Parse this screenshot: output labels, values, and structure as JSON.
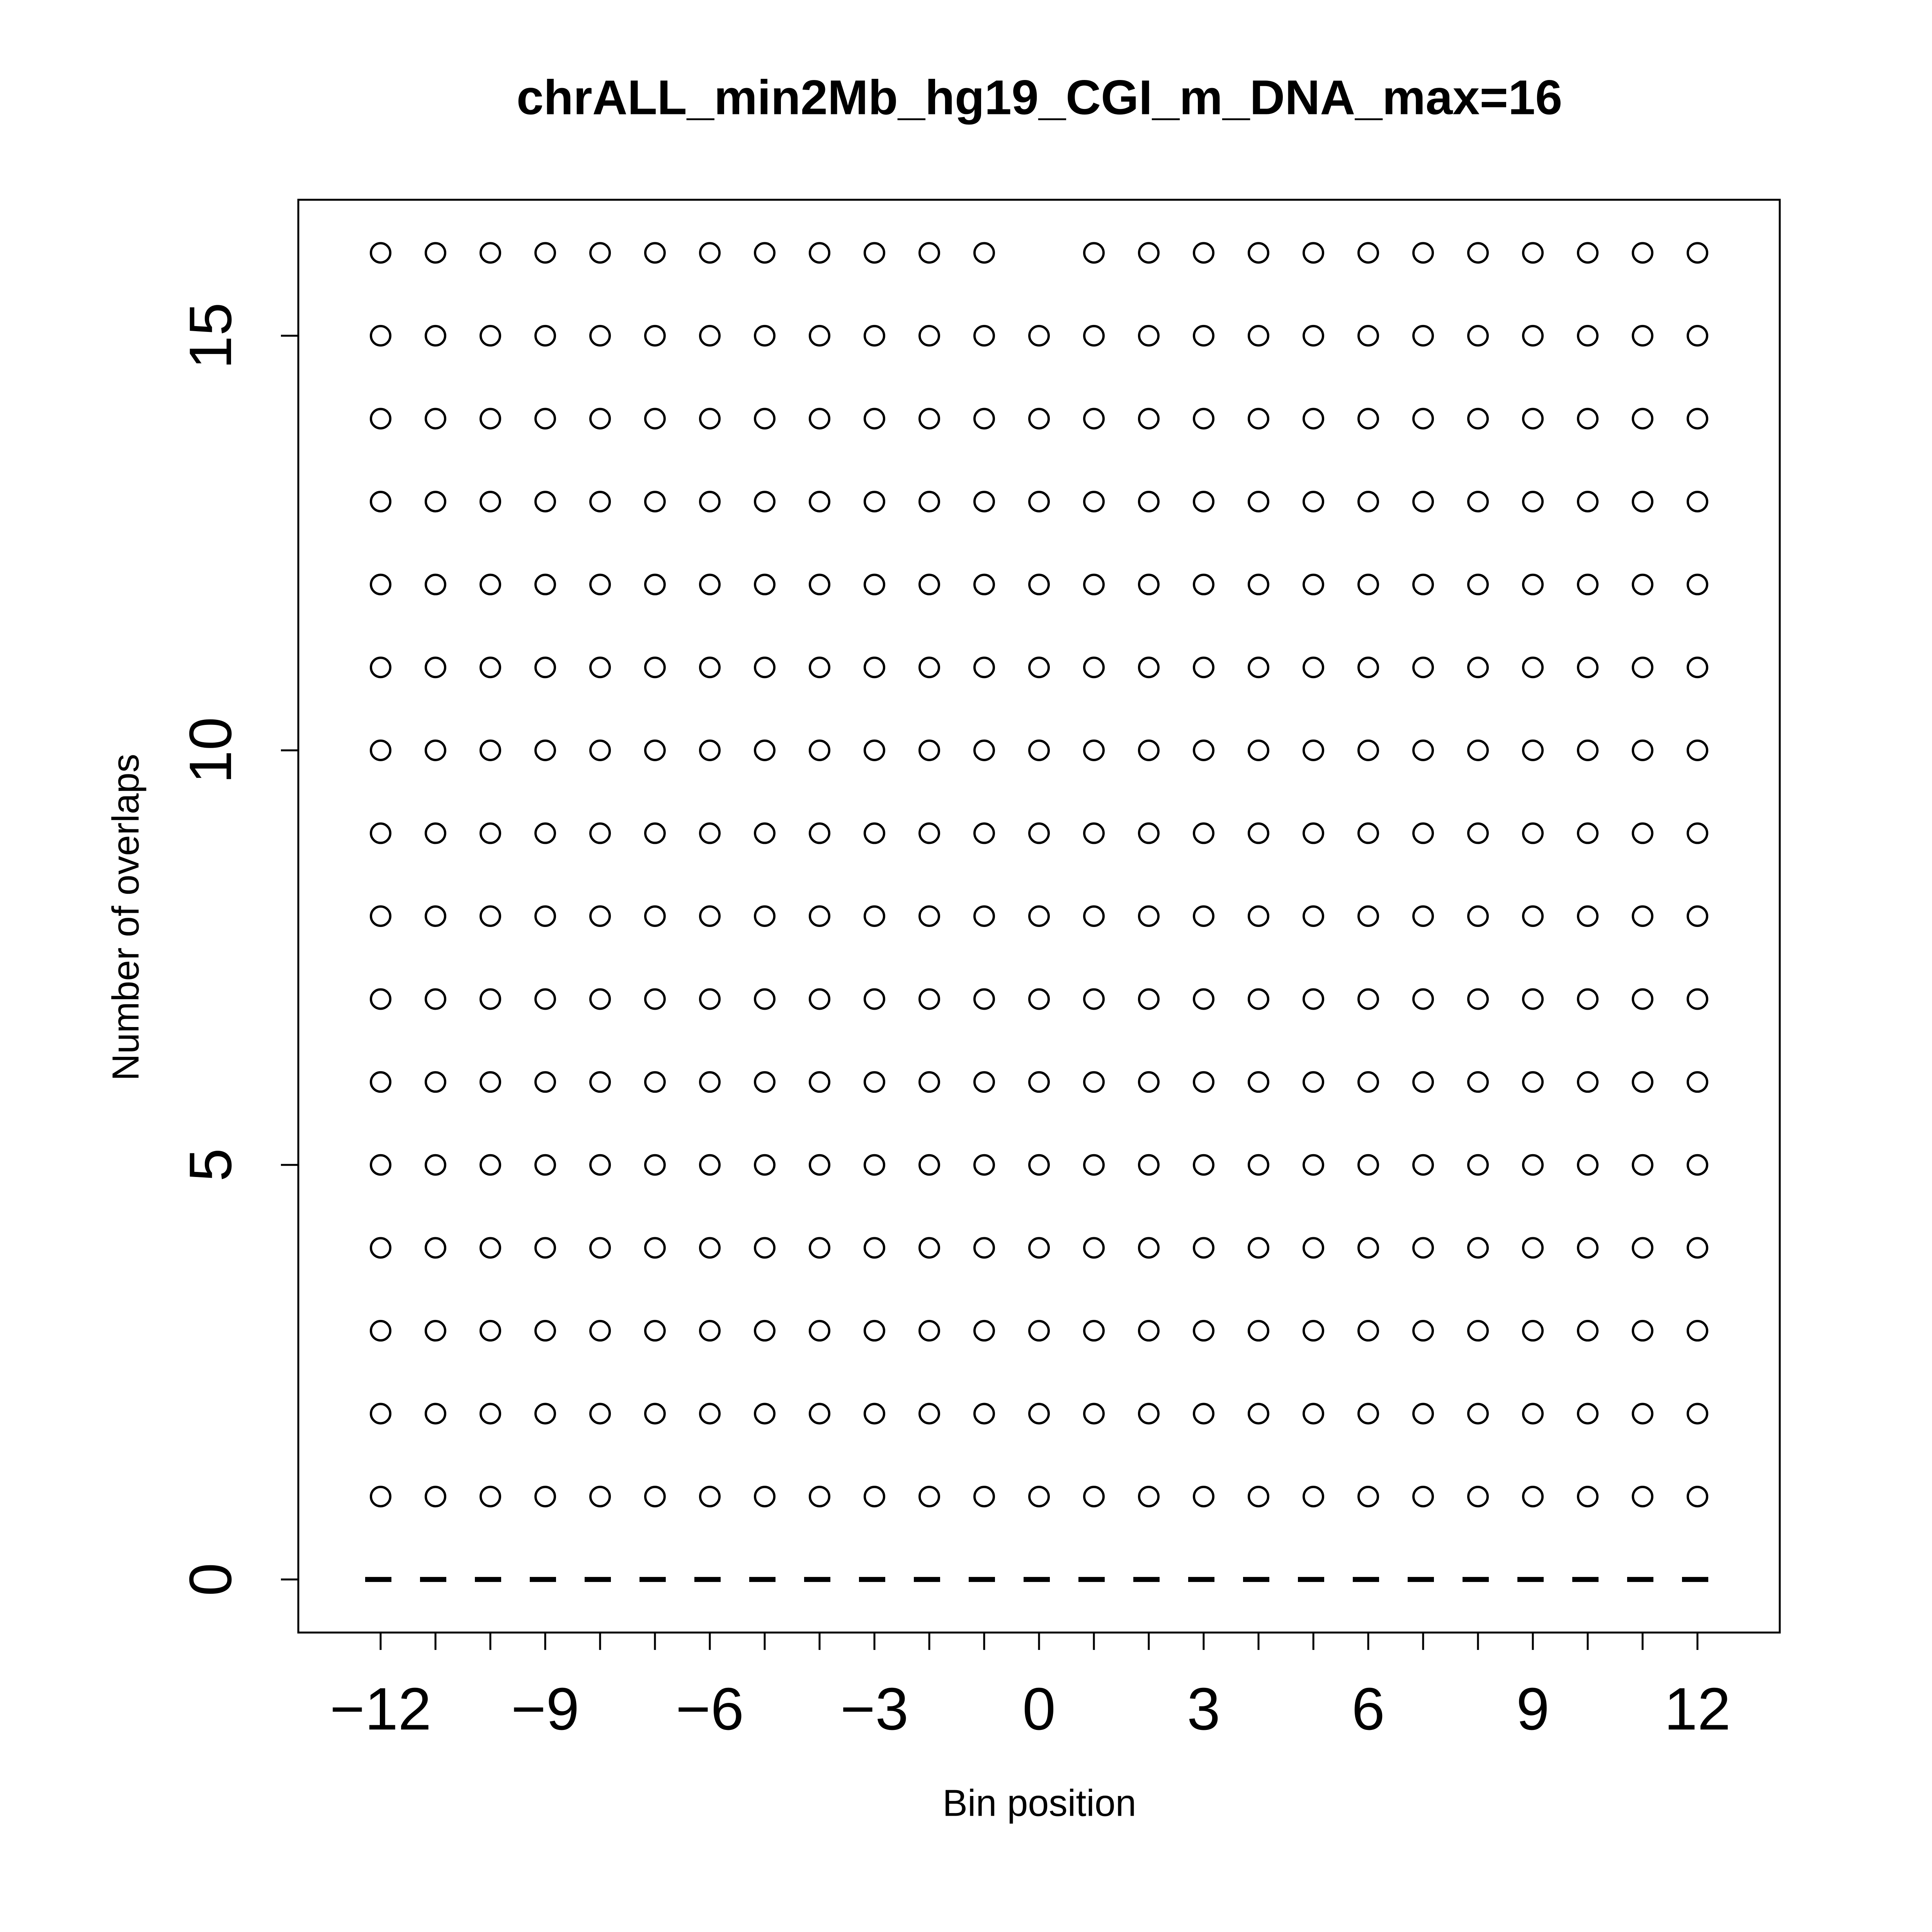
{
  "chart_data": {
    "type": "scatter",
    "title": "chrALL_min2Mb_hg19_CGI_m_DNA_max=16",
    "xlabel": "Bin position",
    "ylabel": "Number of overlaps",
    "x": [
      -12,
      -11,
      -10,
      -9,
      -8,
      -7,
      -6,
      -5,
      -4,
      -3,
      -2,
      -1,
      0,
      1,
      2,
      3,
      4,
      5,
      6,
      7,
      8,
      9,
      10,
      11,
      12
    ],
    "values": [
      [
        1,
        2,
        3,
        4,
        5,
        6,
        7,
        8,
        9,
        10,
        11,
        12,
        13,
        14,
        15,
        16
      ],
      [
        1,
        2,
        3,
        4,
        5,
        6,
        7,
        8,
        9,
        10,
        11,
        12,
        13,
        14,
        15,
        16
      ],
      [
        1,
        2,
        3,
        4,
        5,
        6,
        7,
        8,
        9,
        10,
        11,
        12,
        13,
        14,
        15,
        16
      ],
      [
        1,
        2,
        3,
        4,
        5,
        6,
        7,
        8,
        9,
        10,
        11,
        12,
        13,
        14,
        15,
        16
      ],
      [
        1,
        2,
        3,
        4,
        5,
        6,
        7,
        8,
        9,
        10,
        11,
        12,
        13,
        14,
        15,
        16
      ],
      [
        1,
        2,
        3,
        4,
        5,
        6,
        7,
        8,
        9,
        10,
        11,
        12,
        13,
        14,
        15,
        16
      ],
      [
        1,
        2,
        3,
        4,
        5,
        6,
        7,
        8,
        9,
        10,
        11,
        12,
        13,
        14,
        15,
        16
      ],
      [
        1,
        2,
        3,
        4,
        5,
        6,
        7,
        8,
        9,
        10,
        11,
        12,
        13,
        14,
        15,
        16
      ],
      [
        1,
        2,
        3,
        4,
        5,
        6,
        7,
        8,
        9,
        10,
        11,
        12,
        13,
        14,
        15,
        16
      ],
      [
        1,
        2,
        3,
        4,
        5,
        6,
        7,
        8,
        9,
        10,
        11,
        12,
        13,
        14,
        15,
        16
      ],
      [
        1,
        2,
        3,
        4,
        5,
        6,
        7,
        8,
        9,
        10,
        11,
        12,
        13,
        14,
        15,
        16
      ],
      [
        1,
        2,
        3,
        4,
        5,
        6,
        7,
        8,
        9,
        10,
        11,
        12,
        13,
        14,
        15,
        16
      ],
      [
        1,
        2,
        3,
        4,
        5,
        6,
        7,
        8,
        9,
        10,
        11,
        12,
        13,
        14,
        15
      ],
      [
        1,
        2,
        3,
        4,
        5,
        6,
        7,
        8,
        9,
        10,
        11,
        12,
        13,
        14,
        15,
        16
      ],
      [
        1,
        2,
        3,
        4,
        5,
        6,
        7,
        8,
        9,
        10,
        11,
        12,
        13,
        14,
        15,
        16
      ],
      [
        1,
        2,
        3,
        4,
        5,
        6,
        7,
        8,
        9,
        10,
        11,
        12,
        13,
        14,
        15,
        16
      ],
      [
        1,
        2,
        3,
        4,
        5,
        6,
        7,
        8,
        9,
        10,
        11,
        12,
        13,
        14,
        15,
        16
      ],
      [
        1,
        2,
        3,
        4,
        5,
        6,
        7,
        8,
        9,
        10,
        11,
        12,
        13,
        14,
        15,
        16
      ],
      [
        1,
        2,
        3,
        4,
        5,
        6,
        7,
        8,
        9,
        10,
        11,
        12,
        13,
        14,
        15,
        16
      ],
      [
        1,
        2,
        3,
        4,
        5,
        6,
        7,
        8,
        9,
        10,
        11,
        12,
        13,
        14,
        15,
        16
      ],
      [
        1,
        2,
        3,
        4,
        5,
        6,
        7,
        8,
        9,
        10,
        11,
        12,
        13,
        14,
        15,
        16
      ],
      [
        1,
        2,
        3,
        4,
        5,
        6,
        7,
        8,
        9,
        10,
        11,
        12,
        13,
        14,
        15,
        16
      ],
      [
        1,
        2,
        3,
        4,
        5,
        6,
        7,
        8,
        9,
        10,
        11,
        12,
        13,
        14,
        15,
        16
      ],
      [
        1,
        2,
        3,
        4,
        5,
        6,
        7,
        8,
        9,
        10,
        11,
        12,
        13,
        14,
        15,
        16
      ],
      [
        1,
        2,
        3,
        4,
        5,
        6,
        7,
        8,
        9,
        10,
        11,
        12,
        13,
        14,
        15,
        16
      ]
    ],
    "color": "#000000",
    "hline": 0,
    "xlim": [
      -13.5,
      13.5
    ],
    "ylim": [
      -0.64,
      16.64
    ],
    "xticks": [
      {
        "value": -12,
        "label": "−12"
      },
      {
        "value": -9,
        "label": "−9"
      },
      {
        "value": -6,
        "label": "−6"
      },
      {
        "value": -3,
        "label": "−3"
      },
      0,
      3,
      6,
      9,
      12
    ],
    "xminor_ticks": [
      -12,
      -11,
      -10,
      -9,
      -8,
      -7,
      -6,
      -5,
      -4,
      -3,
      -2,
      -1,
      0,
      1,
      2,
      3,
      4,
      5,
      6,
      7,
      8,
      9,
      10,
      11,
      12
    ],
    "yticks": [
      0,
      5,
      10,
      15
    ]
  }
}
